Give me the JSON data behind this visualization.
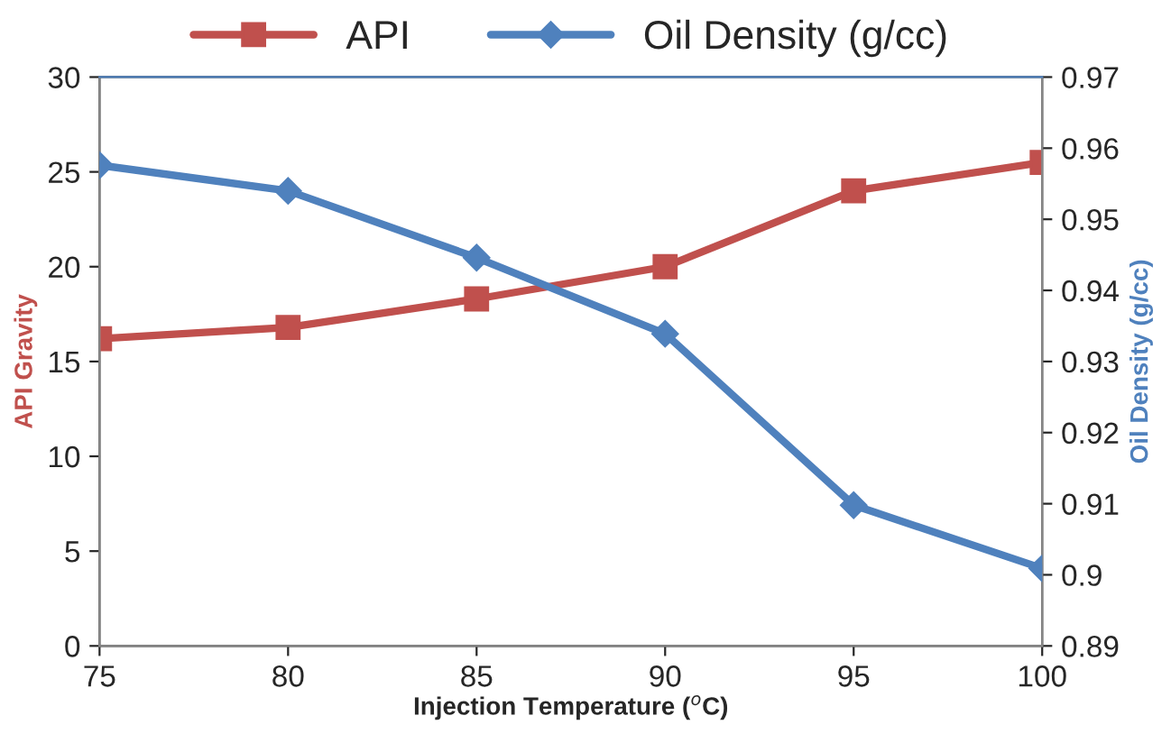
{
  "chart_data": {
    "type": "line",
    "x": [
      75,
      80,
      85,
      90,
      95,
      100
    ],
    "series": [
      {
        "name": "API",
        "color": "#c0504d",
        "marker": "square",
        "values": [
          16.2,
          16.8,
          18.3,
          20.0,
          24.0,
          25.5
        ]
      },
      {
        "name": "Oil Density (g/cc)",
        "color": "#4f81bd",
        "marker": "diamond",
        "axis": "y2",
        "values": [
          0.9576,
          0.954,
          0.9446,
          0.9339,
          0.9098,
          0.9009
        ]
      }
    ],
    "xlabel": "Injection Temperature ($^{o}$C)",
    "ylabel": "API Gravity",
    "y2label": "Oil Density (g/cc)",
    "xlim": [
      75,
      100
    ],
    "xticks": [
      75,
      80,
      85,
      90,
      95,
      100
    ],
    "ylim": [
      0,
      30
    ],
    "yticks": [
      0,
      5,
      10,
      15,
      20,
      25,
      30
    ],
    "y2lim": [
      0.89,
      0.97
    ],
    "y2ticks": [
      0.89,
      0.9,
      0.91,
      0.92,
      0.93,
      0.94,
      0.95,
      0.96,
      0.97
    ],
    "grid": false,
    "legend": "top",
    "line_style": "solid"
  }
}
